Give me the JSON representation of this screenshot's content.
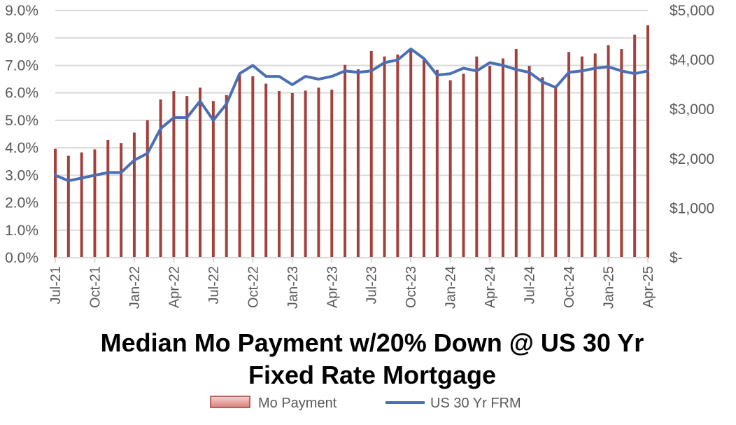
{
  "chart_data": {
    "type": "bar+line",
    "title": [
      "Median Mo Payment w/20% Down @ US 30 Yr",
      "Fixed Rate Mortgage"
    ],
    "x": [
      "Jul-21",
      "Aug-21",
      "Sep-21",
      "Oct-21",
      "Nov-21",
      "Dec-21",
      "Jan-22",
      "Feb-22",
      "Mar-22",
      "Apr-22",
      "May-22",
      "Jun-22",
      "Jul-22",
      "Aug-22",
      "Sep-22",
      "Oct-22",
      "Nov-22",
      "Dec-22",
      "Jan-23",
      "Feb-23",
      "Mar-23",
      "Apr-23",
      "May-23",
      "Jun-23",
      "Jul-23",
      "Aug-23",
      "Sep-23",
      "Oct-23",
      "Nov-23",
      "Dec-23",
      "Jan-24",
      "Feb-24",
      "Mar-24",
      "Apr-24",
      "May-24",
      "Jun-24",
      "Jul-24",
      "Aug-24",
      "Sep-24",
      "Oct-24",
      "Nov-24",
      "Dec-24",
      "Jan-25",
      "Feb-25",
      "Mar-25",
      "Apr-25"
    ],
    "x_tick_labels": [
      "Jul-21",
      "Oct-21",
      "Jan-22",
      "Apr-22",
      "Jul-22",
      "Oct-22",
      "Jan-23",
      "Apr-23",
      "Jul-23",
      "Oct-23",
      "Jan-24",
      "Apr-24",
      "Jul-24",
      "Oct-24",
      "Jan-25",
      "Apr-25"
    ],
    "series": [
      {
        "name": "Mo Payment",
        "type": "bar",
        "axis": "right",
        "color": "#a3413c",
        "values": [
          2200,
          2060,
          2130,
          2190,
          2380,
          2320,
          2530,
          2780,
          3200,
          3370,
          3270,
          3440,
          3170,
          3290,
          3700,
          3670,
          3520,
          3370,
          3330,
          3380,
          3440,
          3400,
          3900,
          3810,
          4180,
          4070,
          4110,
          4200,
          4000,
          3800,
          3590,
          3720,
          4070,
          3880,
          4030,
          4220,
          3880,
          3650,
          3480,
          4160,
          4070,
          4130,
          4300,
          4220,
          4510,
          4700
        ]
      },
      {
        "name": "US 30 Yr FRM",
        "type": "line",
        "axis": "left",
        "color": "#4a6fb5",
        "values": [
          3.0,
          2.8,
          2.9,
          3.0,
          3.1,
          3.1,
          3.55,
          3.8,
          4.7,
          5.1,
          5.1,
          5.7,
          5.0,
          5.6,
          6.7,
          7.0,
          6.6,
          6.6,
          6.3,
          6.6,
          6.5,
          6.6,
          6.8,
          6.75,
          6.8,
          7.1,
          7.2,
          7.6,
          7.25,
          6.65,
          6.7,
          6.9,
          6.8,
          7.1,
          7.0,
          6.85,
          6.75,
          6.4,
          6.2,
          6.75,
          6.8,
          6.9,
          6.95,
          6.8,
          6.7,
          6.8
        ]
      }
    ],
    "y_left": {
      "range": [
        0,
        9
      ],
      "ticks": [
        0,
        1,
        2,
        3,
        4,
        5,
        6,
        7,
        8,
        9
      ],
      "tick_labels": [
        "0.0%",
        "1.0%",
        "2.0%",
        "3.0%",
        "4.0%",
        "5.0%",
        "6.0%",
        "7.0%",
        "8.0%",
        "9.0%"
      ]
    },
    "y_right": {
      "range": [
        0,
        5000
      ],
      "ticks": [
        0,
        1000,
        2000,
        3000,
        4000,
        5000
      ],
      "tick_labels": [
        "$-",
        "$1,000",
        "$2,000",
        "$3,000",
        "$4,000",
        "$5,000"
      ]
    },
    "grid": true,
    "legend": {
      "position": "bottom",
      "items": [
        {
          "label": "Mo Payment",
          "kind": "bar",
          "color": "#a3413c"
        },
        {
          "label": "US 30 Yr FRM",
          "kind": "line",
          "color": "#4a6fb5"
        }
      ]
    }
  }
}
